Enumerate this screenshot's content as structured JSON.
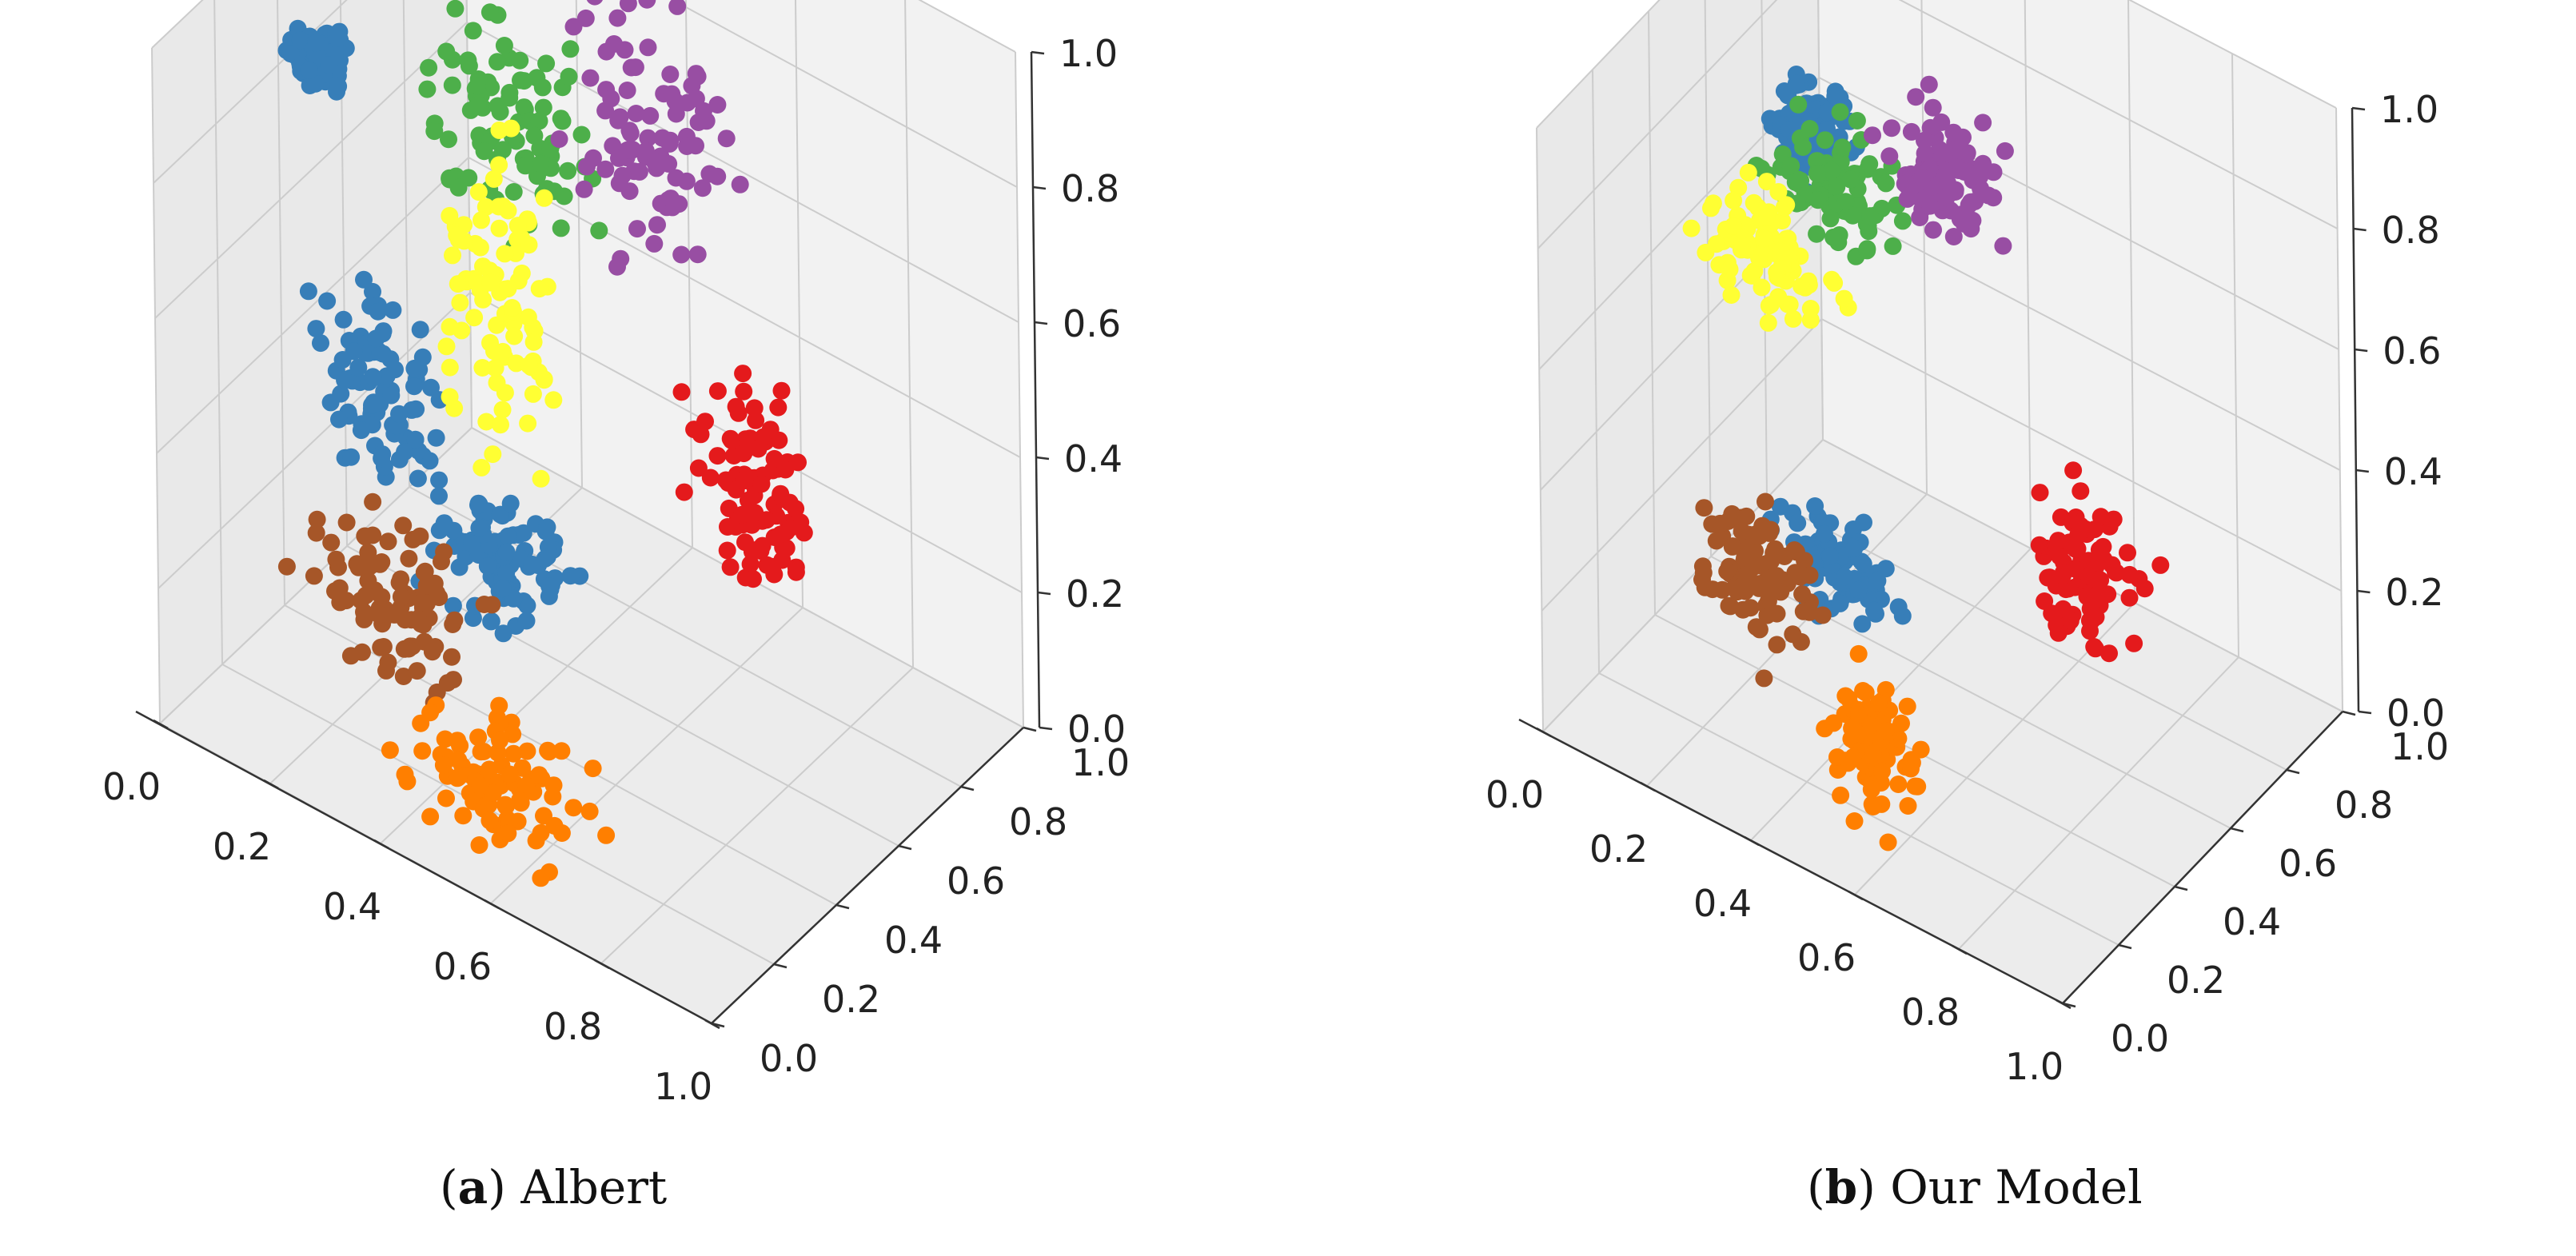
{
  "chart_data": [
    {
      "type": "scatter",
      "projection": "3d",
      "caption": {
        "letter": "a",
        "label": "Albert"
      },
      "xlim": [
        0,
        1
      ],
      "ylim": [
        0,
        1
      ],
      "zlim": [
        0,
        1
      ],
      "x_ticks": [
        "0.0",
        "0.2",
        "0.4",
        "0.6",
        "0.8",
        "1.0"
      ],
      "y_ticks": [
        "0.0",
        "0.2",
        "0.4",
        "0.6",
        "0.8",
        "1.0"
      ],
      "z_ticks": [
        "0.0",
        "0.2",
        "0.4",
        "0.6",
        "0.8",
        "1.0"
      ],
      "grid": true,
      "clusters": [
        {
          "color": "#377eb8",
          "center": [
            0.26,
            0.26,
            0.5
          ],
          "spread": [
            0.05,
            0.05,
            0.06
          ]
        },
        {
          "color": "#377eb8",
          "center": [
            0.4,
            0.4,
            0.25
          ],
          "spread": [
            0.05,
            0.04,
            0.04
          ]
        },
        {
          "color": "#377eb8",
          "center": [
            0.1,
            0.35,
            0.88
          ],
          "spread": [
            0.02,
            0.02,
            0.02
          ]
        },
        {
          "color": "#4daf4a",
          "center": [
            0.33,
            0.55,
            0.8
          ],
          "spread": [
            0.07,
            0.05,
            0.07
          ]
        },
        {
          "color": "#984ea3",
          "center": [
            0.55,
            0.62,
            0.85
          ],
          "spread": [
            0.06,
            0.06,
            0.08
          ]
        },
        {
          "color": "#ffff33",
          "center": [
            0.4,
            0.4,
            0.63
          ],
          "spread": [
            0.05,
            0.05,
            0.11
          ]
        },
        {
          "color": "#e41a1c",
          "center": [
            0.78,
            0.55,
            0.45
          ],
          "spread": [
            0.05,
            0.05,
            0.08
          ]
        },
        {
          "color": "#a65628",
          "center": [
            0.3,
            0.22,
            0.22
          ],
          "spread": [
            0.07,
            0.05,
            0.05
          ]
        },
        {
          "color": "#ff7f00",
          "center": [
            0.5,
            0.2,
            0.05
          ],
          "spread": [
            0.07,
            0.05,
            0.04
          ]
        }
      ]
    },
    {
      "type": "scatter",
      "projection": "3d",
      "caption": {
        "letter": "b",
        "label": "Our Model"
      },
      "xlim": [
        0,
        1
      ],
      "ylim": [
        0,
        1
      ],
      "zlim": [
        0,
        1
      ],
      "x_ticks": [
        "0.0",
        "0.2",
        "0.4",
        "0.6",
        "0.8",
        "1.0"
      ],
      "y_ticks": [
        "0.0",
        "0.2",
        "0.4",
        "0.6",
        "0.8",
        "1.0"
      ],
      "z_ticks": [
        "0.0",
        "0.2",
        "0.4",
        "0.6",
        "0.8",
        "1.0"
      ],
      "grid": true,
      "clusters": [
        {
          "color": "#377eb8",
          "center": [
            0.25,
            0.5,
            0.88
          ],
          "spread": [
            0.03,
            0.03,
            0.03
          ]
        },
        {
          "color": "#377eb8",
          "center": [
            0.4,
            0.32,
            0.3
          ],
          "spread": [
            0.05,
            0.03,
            0.03
          ]
        },
        {
          "color": "#4daf4a",
          "center": [
            0.3,
            0.5,
            0.8
          ],
          "spread": [
            0.05,
            0.04,
            0.04
          ]
        },
        {
          "color": "#984ea3",
          "center": [
            0.45,
            0.62,
            0.82
          ],
          "spread": [
            0.04,
            0.04,
            0.06
          ]
        },
        {
          "color": "#ffff33",
          "center": [
            0.22,
            0.4,
            0.7
          ],
          "spread": [
            0.06,
            0.04,
            0.04
          ]
        },
        {
          "color": "#e41a1c",
          "center": [
            0.78,
            0.5,
            0.38
          ],
          "spread": [
            0.04,
            0.04,
            0.05
          ]
        },
        {
          "color": "#a65628",
          "center": [
            0.3,
            0.22,
            0.3
          ],
          "spread": [
            0.05,
            0.04,
            0.05
          ]
        },
        {
          "color": "#ff7f00",
          "center": [
            0.48,
            0.28,
            0.05
          ],
          "spread": [
            0.04,
            0.03,
            0.05
          ]
        }
      ]
    }
  ]
}
